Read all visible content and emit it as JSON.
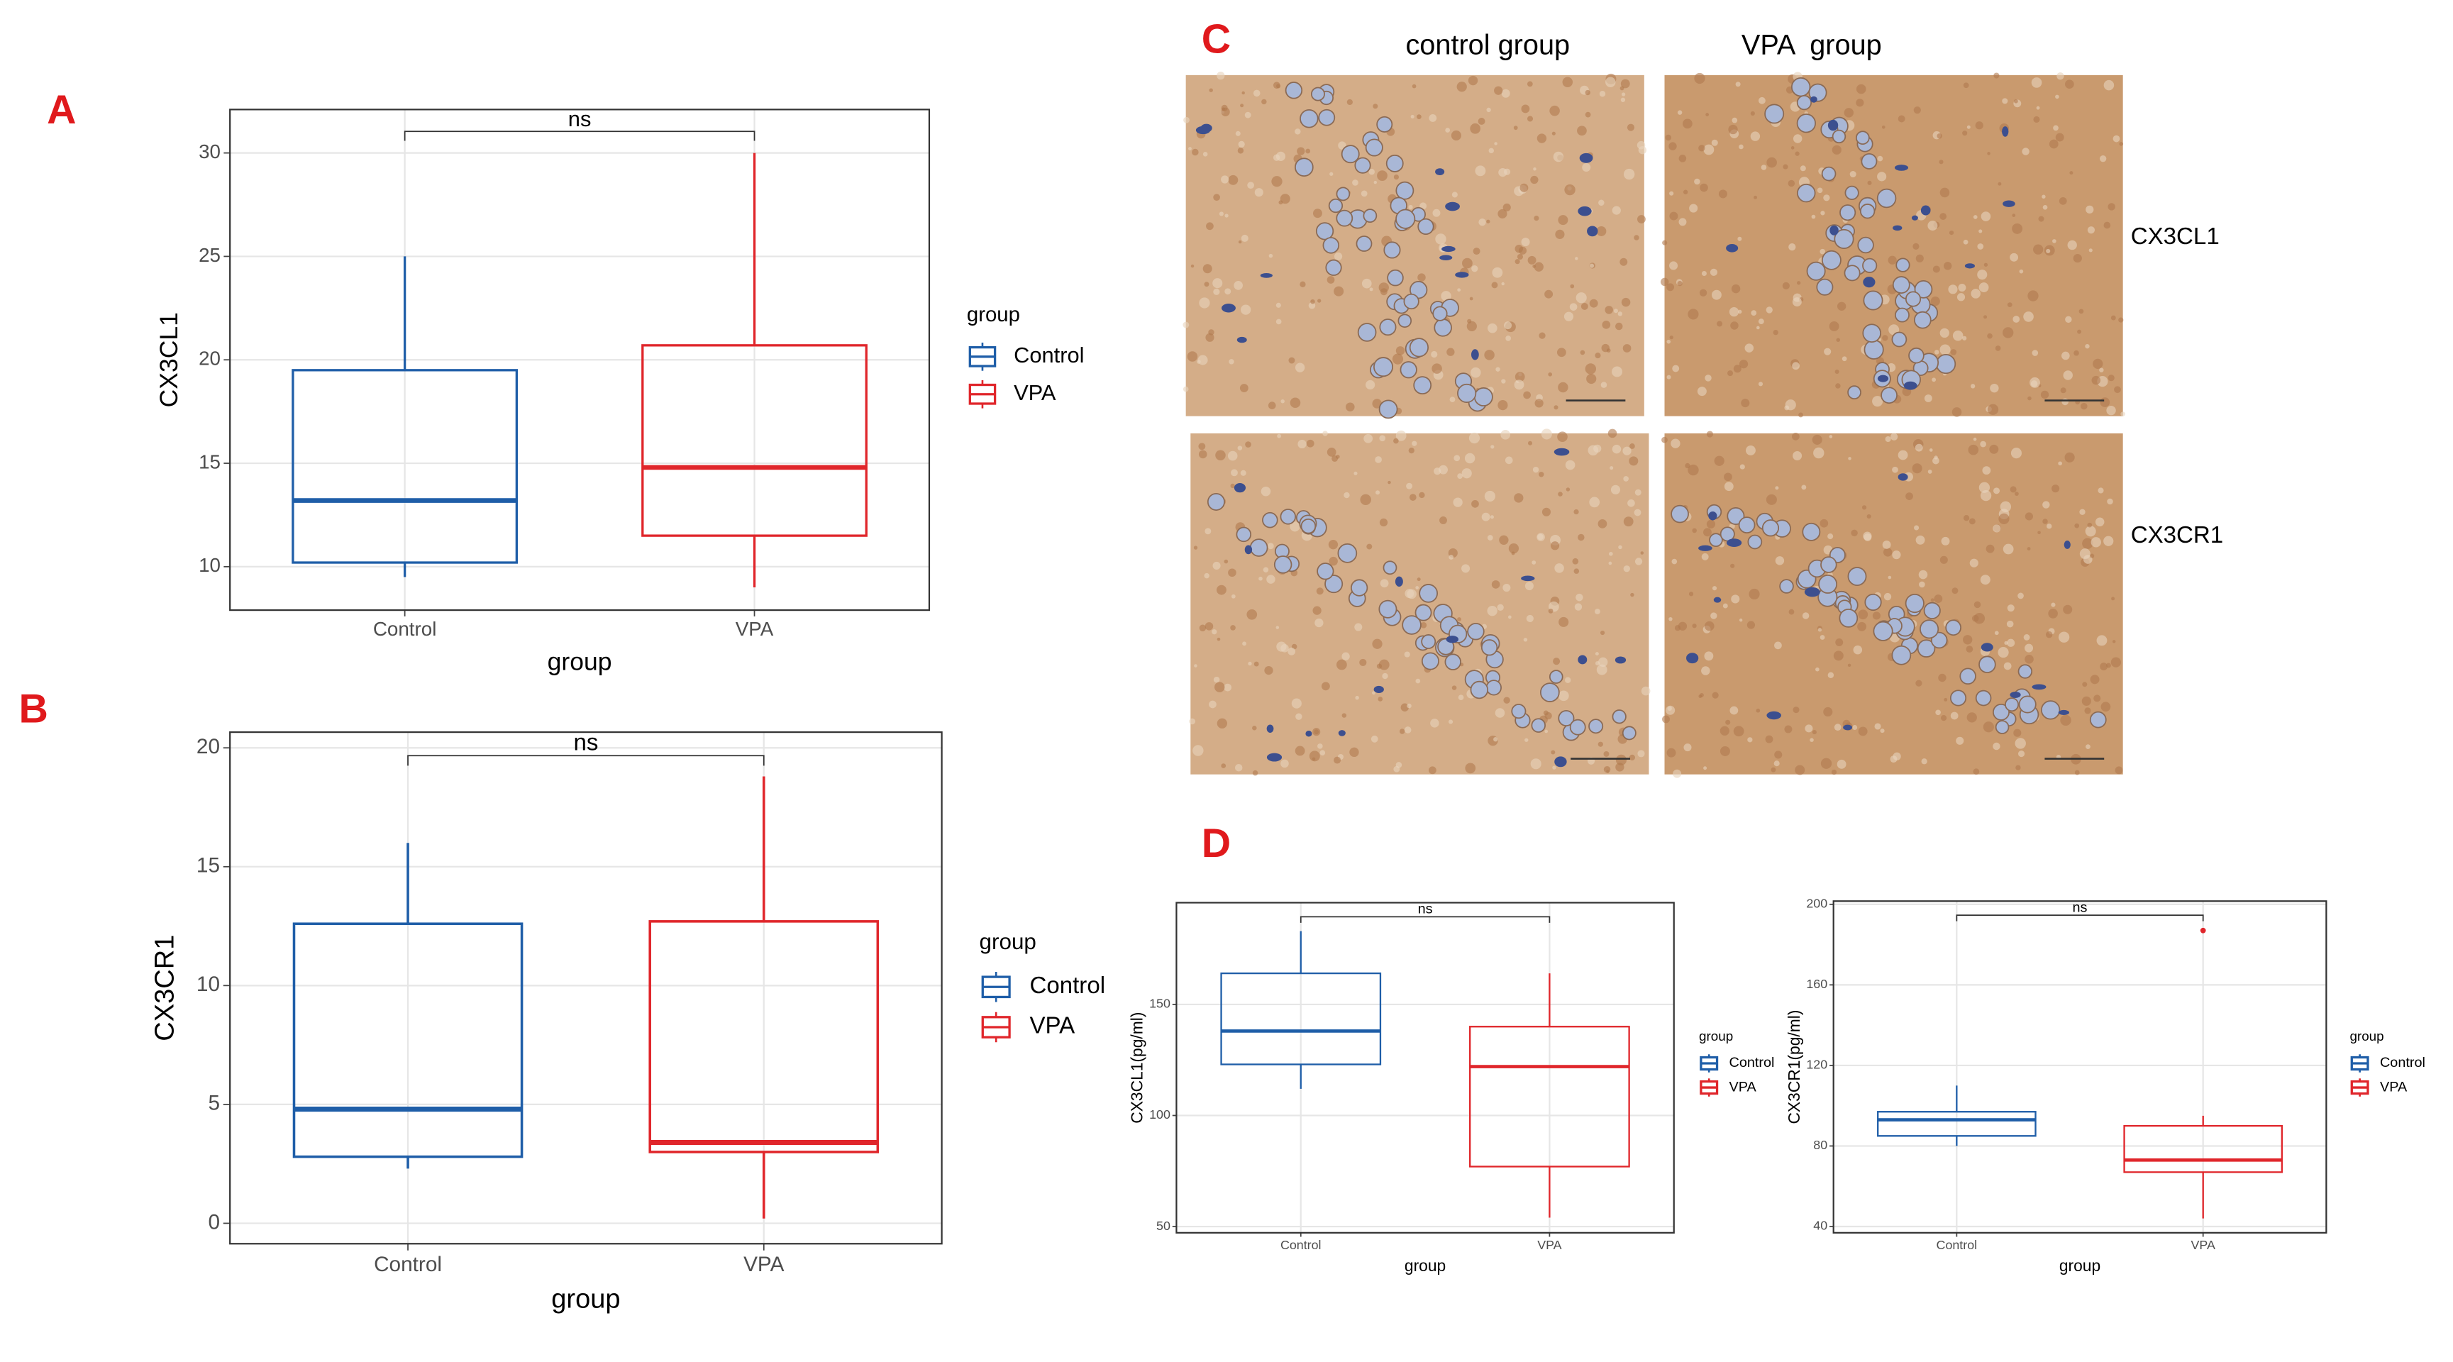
{
  "panel_letters": [
    "A",
    "B",
    "C",
    "D"
  ],
  "micrograph": {
    "columns": [
      "control group",
      "VPA  group"
    ],
    "rows": [
      "CX3CL1",
      "CX3CR1"
    ]
  },
  "chart_data": [
    {
      "type": "box",
      "ylabel": "CX3CL1",
      "xlabel": "group",
      "annotation": "ns",
      "legend_title": "group",
      "categories": [
        "Control",
        "VPA"
      ],
      "ylim": [
        7.9,
        32.1
      ],
      "yticks": [
        10,
        15,
        20,
        25,
        30
      ],
      "grid": true,
      "boxes": [
        {
          "name": "Control",
          "color": "#1f5ea8",
          "min": 9.5,
          "q1": 10.2,
          "median": 13.2,
          "q3": 19.5,
          "max": 25
        },
        {
          "name": "VPA",
          "color": "#e0262b",
          "min": 9,
          "q1": 11.5,
          "median": 14.8,
          "q3": 20.7,
          "max": 30
        }
      ]
    },
    {
      "type": "box",
      "ylabel": "CX3CR1",
      "xlabel": "group",
      "annotation": "ns",
      "legend_title": "group",
      "categories": [
        "Control",
        "VPA"
      ],
      "ylim": [
        -0.86,
        20.66
      ],
      "yticks": [
        0,
        5,
        10,
        15,
        20
      ],
      "grid": true,
      "boxes": [
        {
          "name": "Control",
          "color": "#1f5ea8",
          "min": 2.3,
          "q1": 2.8,
          "median": 4.8,
          "q3": 12.6,
          "max": 16
        },
        {
          "name": "VPA",
          "color": "#e0262b",
          "min": 0.2,
          "q1": 3,
          "median": 3.4,
          "q3": 12.7,
          "max": 18.8
        }
      ]
    },
    {
      "type": "box",
      "ylabel": "CX3CL1(pg/ml)",
      "xlabel": "group",
      "annotation": "ns",
      "legend_title": "group",
      "categories": [
        "Control",
        "VPA"
      ],
      "ylim": [
        47.2,
        195.8
      ],
      "yticks": [
        50,
        100,
        150
      ],
      "grid": true,
      "boxes": [
        {
          "name": "Control",
          "color": "#1f5ea8",
          "min": 112,
          "q1": 123,
          "median": 138,
          "q3": 164,
          "max": 183
        },
        {
          "name": "VPA",
          "color": "#e0262b",
          "min": 54,
          "q1": 77,
          "median": 122,
          "q3": 140,
          "max": 164
        }
      ]
    },
    {
      "type": "box",
      "ylabel": "CX3CR1(pg/ml)",
      "xlabel": "group",
      "annotation": "ns",
      "legend_title": "group",
      "categories": [
        "Control",
        "VPA"
      ],
      "ylim": [
        36.9,
        201.6
      ],
      "yticks": [
        40,
        80,
        120,
        160,
        200
      ],
      "grid": true,
      "boxes": [
        {
          "name": "Control",
          "color": "#1f5ea8",
          "min": 80,
          "q1": 85,
          "median": 93,
          "q3": 97,
          "max": 110
        },
        {
          "name": "VPA",
          "color": "#e0262b",
          "min": 44,
          "q1": 67,
          "median": 73,
          "q3": 90,
          "max": 95,
          "outliers": [
            187
          ]
        }
      ]
    }
  ]
}
